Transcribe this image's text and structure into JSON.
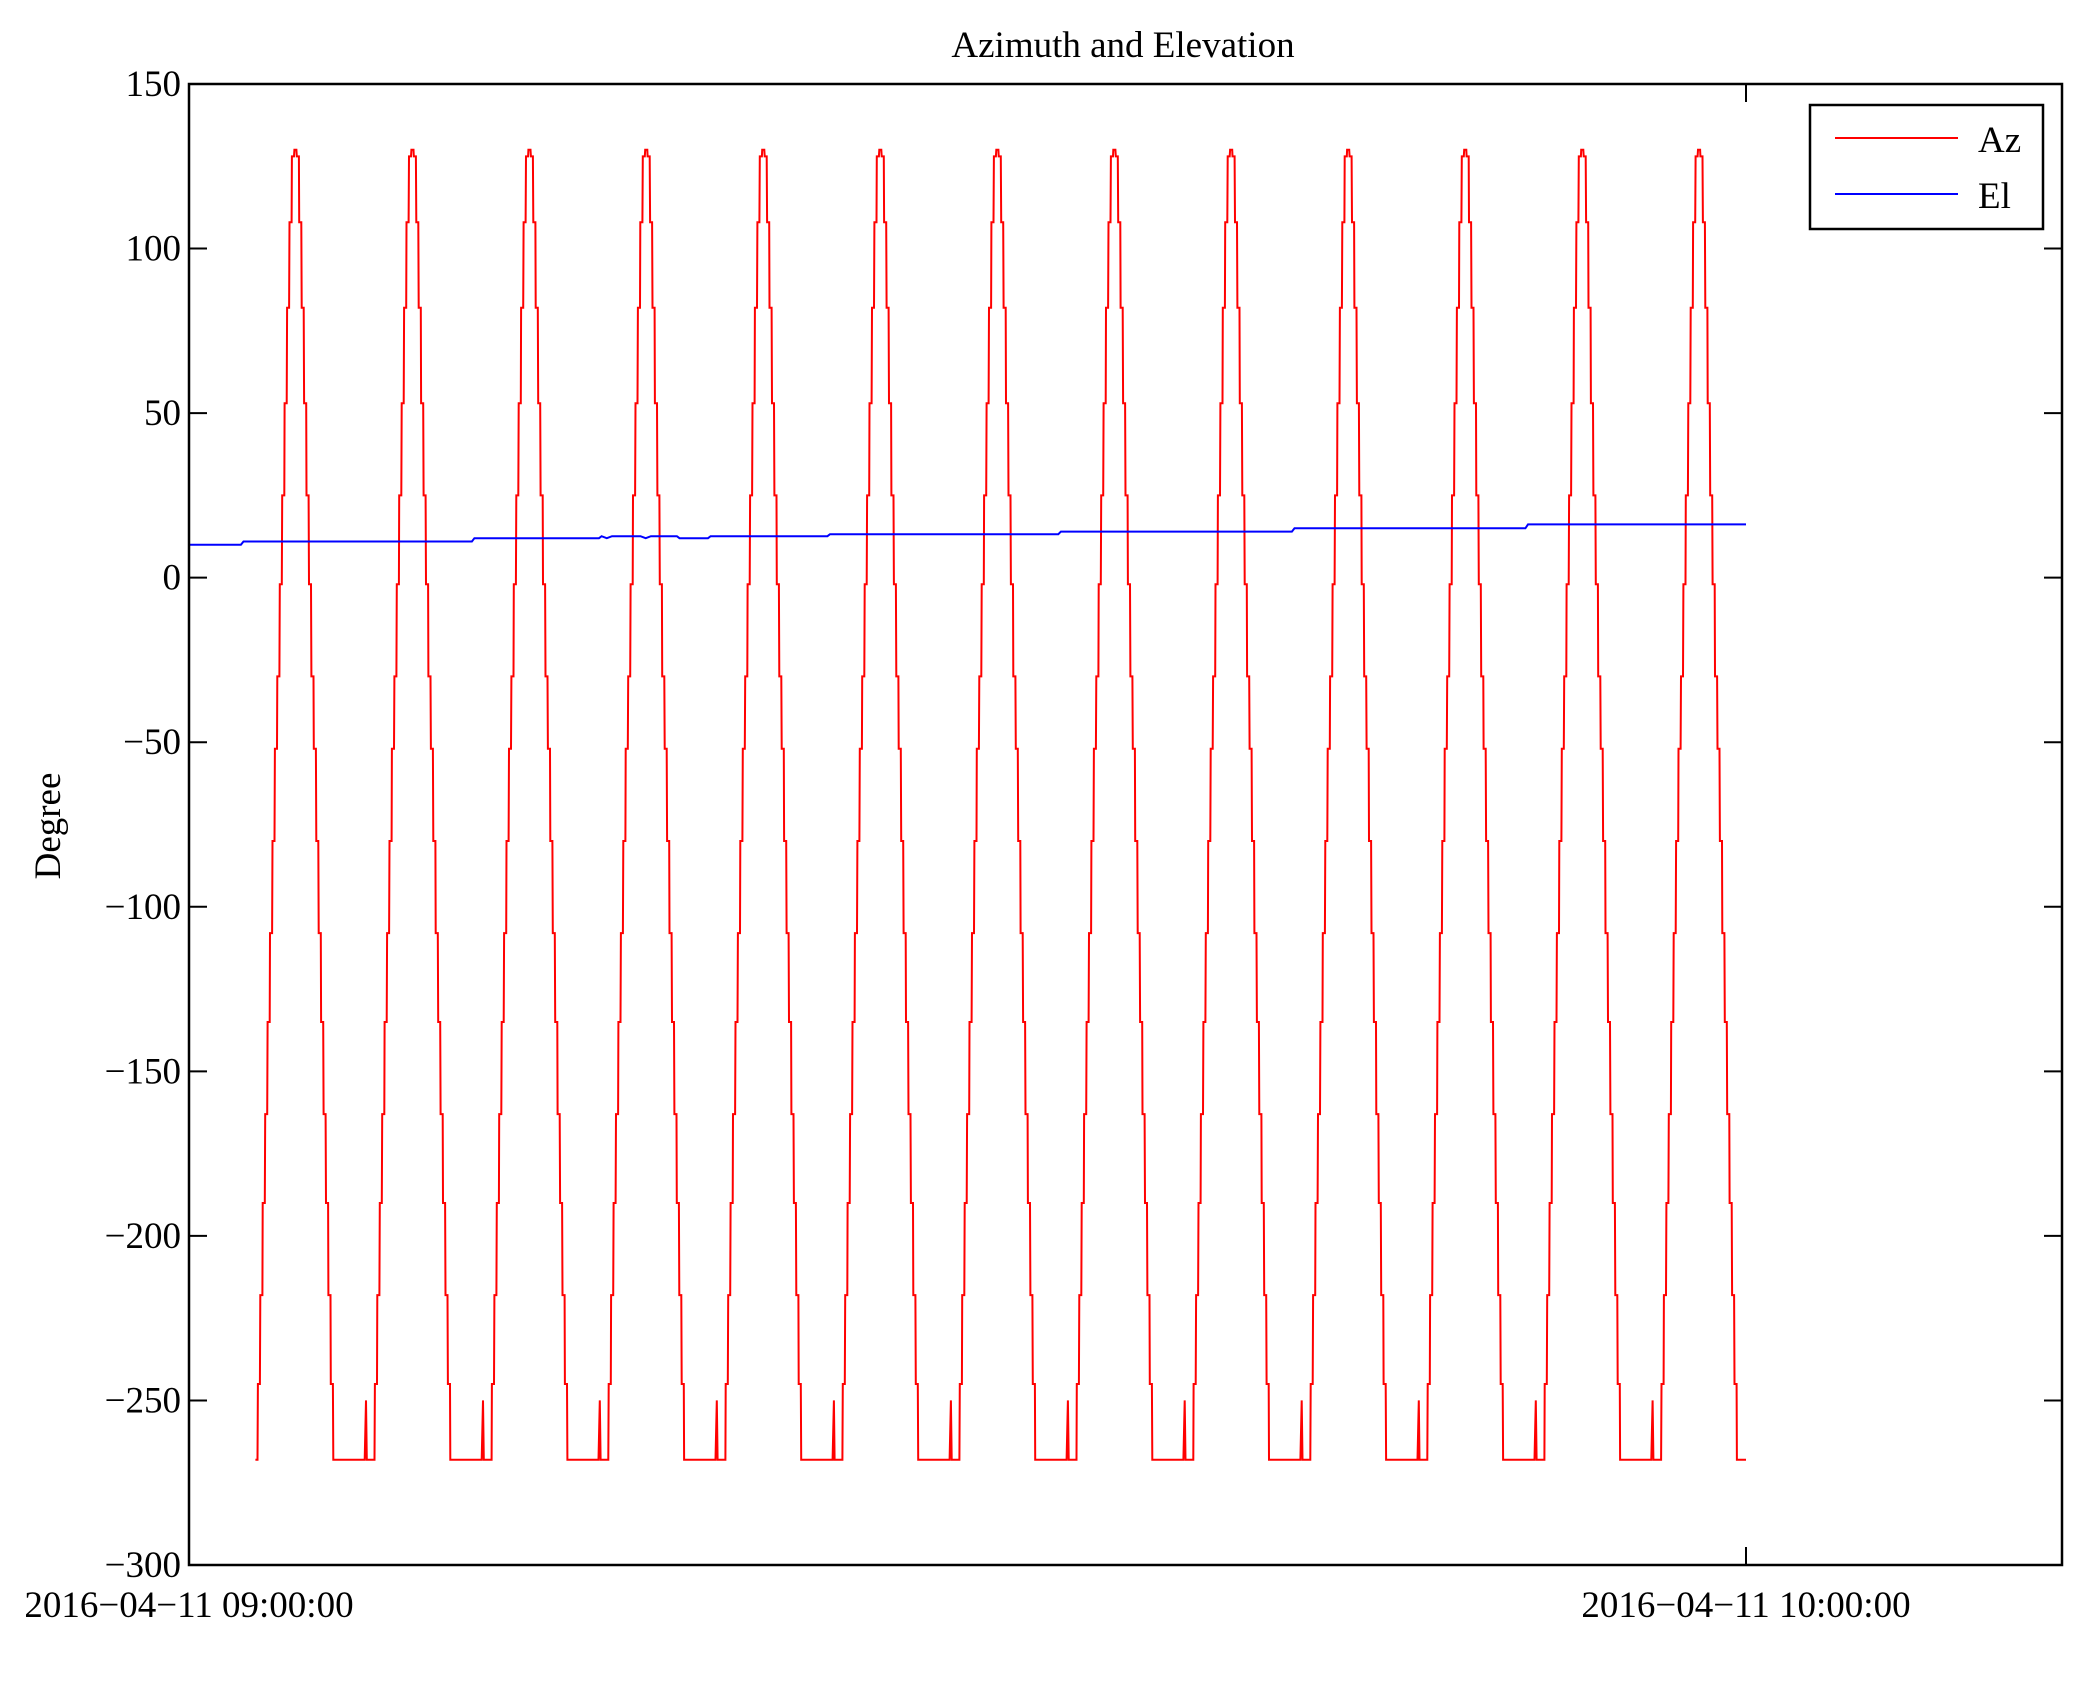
{
  "chart_data": {
    "type": "line",
    "title": "Azimuth and Elevation",
    "xlabel": "",
    "ylabel": "Degree",
    "x_unit": "minutes after 2016-04-11 09:00:00",
    "xlim": [
      0,
      60
    ],
    "ylim": [
      -300,
      150
    ],
    "yticks": [
      150,
      100,
      50,
      0,
      -50,
      -100,
      -150,
      -200,
      -250,
      -300
    ],
    "ytick_labels": [
      "150",
      "100",
      "50",
      "0",
      "−50",
      "−100",
      "−150",
      "−200",
      "−250",
      "−300"
    ],
    "xticks": [
      0,
      60
    ],
    "xtick_labels": [
      "2016−04−11 09:00:00",
      "2016−04−11 10:00:00"
    ],
    "grid": false,
    "legend": {
      "placement": "top-right",
      "entries": [
        "Az",
        "El"
      ]
    },
    "series": [
      {
        "name": "Az",
        "color": "#ff0000",
        "peak_times": [
          4.06,
          8.57,
          13.08,
          17.58,
          22.09,
          26.6,
          31.11,
          35.62,
          40.12,
          44.63,
          49.14,
          53.65,
          58.15
        ],
        "rise_levels": [
          -268,
          -245,
          -218,
          -190,
          -163,
          -135,
          -108,
          -80,
          -52,
          -30,
          -2,
          25,
          53,
          82,
          108,
          128,
          130
        ],
        "half_width": 1.5,
        "floor": -268,
        "floor_spike": -250,
        "end_time": 60
      },
      {
        "name": "El",
        "color": "#0000ff",
        "points": [
          [
            0,
            10
          ],
          [
            2.0,
            10
          ],
          [
            2.1,
            11
          ],
          [
            10.9,
            11
          ],
          [
            11.0,
            12
          ],
          [
            15.8,
            12
          ],
          [
            15.9,
            12.6
          ],
          [
            16.1,
            12
          ],
          [
            16.3,
            12.6
          ],
          [
            17.4,
            12.6
          ],
          [
            17.6,
            12
          ],
          [
            17.8,
            12.6
          ],
          [
            18.8,
            12.6
          ],
          [
            18.9,
            12
          ],
          [
            20.0,
            12
          ],
          [
            20.1,
            12.6
          ],
          [
            24.6,
            12.6
          ],
          [
            24.7,
            13.2
          ],
          [
            33.5,
            13.2
          ],
          [
            33.6,
            14
          ],
          [
            42.5,
            14
          ],
          [
            42.6,
            15
          ],
          [
            51.5,
            15
          ],
          [
            51.6,
            16.2
          ],
          [
            60,
            16.2
          ]
        ]
      }
    ]
  }
}
